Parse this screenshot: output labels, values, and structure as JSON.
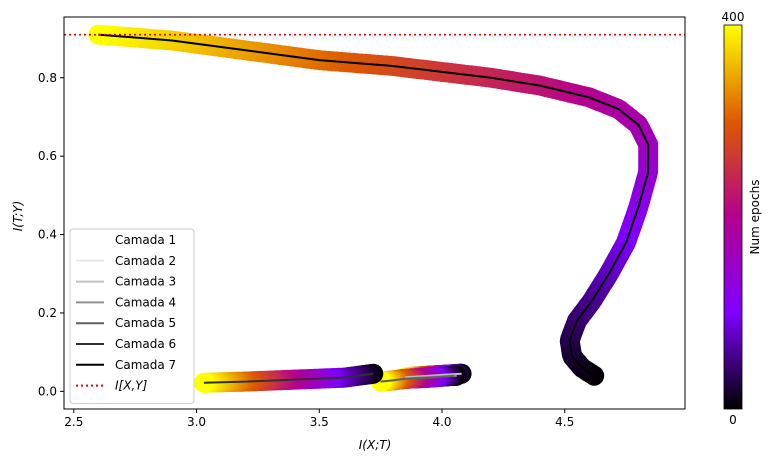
{
  "chart_data": {
    "type": "scatter",
    "xlabel": "I(X;T)",
    "ylabel": "I(T;Y)",
    "xlim": [
      2.46,
      4.99
    ],
    "ylim": [
      -0.045,
      0.955
    ],
    "xticks": [
      "2.5",
      "3.0",
      "3.5",
      "4.0",
      "4.5"
    ],
    "yticks": [
      "0.0",
      "0.2",
      "0.4",
      "0.6",
      "0.8"
    ],
    "reference_line": {
      "name": "I[X,Y]",
      "y": 0.91,
      "color": "#e00000"
    },
    "colorbar": {
      "label": "Num epochs",
      "min": "0",
      "max": "400"
    },
    "legend_placement": "lower-left",
    "series": [
      {
        "name": "Camada 1",
        "color": "#ffffff",
        "points": []
      },
      {
        "name": "Camada 2",
        "color": "#e8e8e8",
        "points": []
      },
      {
        "name": "Camada 3",
        "color": "#c0c0c0",
        "points": [
          [
            4.08,
            0.045
          ],
          [
            4.0,
            0.042
          ],
          [
            3.95,
            0.04
          ],
          [
            3.9,
            0.038
          ],
          [
            3.85,
            0.036
          ]
        ]
      },
      {
        "name": "Camada 4",
        "color": "#909090",
        "points": [
          [
            4.06,
            0.04
          ],
          [
            3.98,
            0.038
          ],
          [
            3.92,
            0.036
          ],
          [
            3.88,
            0.034
          ],
          [
            3.83,
            0.03
          ]
        ]
      },
      {
        "name": "Camada 5",
        "color": "#606060",
        "points": [
          [
            4.05,
            0.04
          ],
          [
            3.95,
            0.035
          ],
          [
            3.85,
            0.032
          ],
          [
            3.8,
            0.028
          ],
          [
            3.75,
            0.025
          ]
        ]
      },
      {
        "name": "Camada 6",
        "color": "#303030",
        "points": [
          [
            3.72,
            0.045
          ],
          [
            3.6,
            0.035
          ],
          [
            3.4,
            0.03
          ],
          [
            3.2,
            0.025
          ],
          [
            3.03,
            0.022
          ]
        ]
      },
      {
        "name": "Camada 7",
        "color": "#000000",
        "points": [
          [
            4.62,
            0.04
          ],
          [
            4.57,
            0.06
          ],
          [
            4.53,
            0.09
          ],
          [
            4.52,
            0.13
          ],
          [
            4.55,
            0.18
          ],
          [
            4.61,
            0.23
          ],
          [
            4.68,
            0.3
          ],
          [
            4.75,
            0.38
          ],
          [
            4.8,
            0.47
          ],
          [
            4.84,
            0.56
          ],
          [
            4.84,
            0.63
          ],
          [
            4.8,
            0.68
          ],
          [
            4.72,
            0.72
          ],
          [
            4.6,
            0.75
          ],
          [
            4.4,
            0.78
          ],
          [
            4.2,
            0.8
          ],
          [
            4.0,
            0.815
          ],
          [
            3.8,
            0.83
          ],
          [
            3.5,
            0.845
          ],
          [
            3.2,
            0.87
          ],
          [
            2.9,
            0.895
          ],
          [
            2.7,
            0.905
          ],
          [
            2.6,
            0.91
          ]
        ]
      }
    ]
  }
}
